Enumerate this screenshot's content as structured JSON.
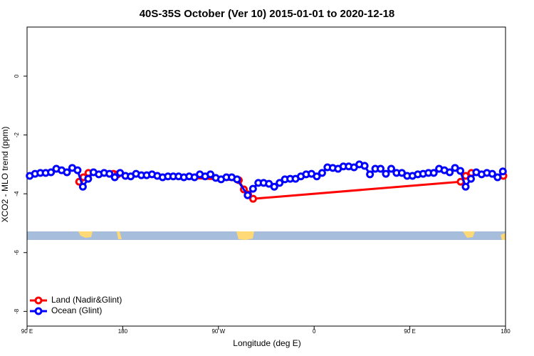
{
  "chart_data": {
    "type": "line",
    "title": "40S-35S October (Ver 10)   2015-01-01 to 2020-12-18",
    "x_label": "Longitude (deg E)",
    "y_label": "XCO2 - MLO trend (ppm)",
    "xlim": [
      90,
      540
    ],
    "ylim": [
      -8.5,
      1.67
    ],
    "xticks": [
      {
        "value": 90,
        "label": "90 E"
      },
      180,
      {
        "value": 270,
        "label": "90 W"
      },
      {
        "value": 360,
        "label": "0"
      },
      {
        "value": 450,
        "label": "90 E"
      },
      {
        "value": 540,
        "label": "180"
      }
    ],
    "yticks": [
      -8,
      -6,
      -4,
      -2,
      0
    ],
    "legend": "bottom-left",
    "series": [
      {
        "name": "Land (Nadir&Glint)",
        "color": "#ff0000",
        "x": [
          139,
          143,
          147.7,
          171.2,
          175.2,
          289.2,
          293.9,
          297.9,
          302.6,
          497.8,
          502.5,
          507.9,
          538
        ],
        "values": [
          -3.59,
          -3.44,
          -3.29,
          -3.32,
          -3.34,
          -3.54,
          -3.85,
          -4.02,
          -4.17,
          -3.59,
          -3.39,
          -3.29,
          -3.39
        ]
      },
      {
        "name": "Ocean (Glint)",
        "color": "#0000ff",
        "x": [
          92.5,
          97.5,
          102.5,
          107.5,
          112.5,
          117.5,
          122.5,
          127.5,
          132.5,
          137.5,
          142.5,
          147.5,
          152.5,
          157.5,
          162.5,
          167.5,
          172.5,
          177.5,
          182.5,
          187.5,
          192.5,
          197.5,
          202.5,
          207.5,
          212.5,
          217.5,
          222.5,
          227.5,
          232.5,
          237.5,
          242.5,
          247.5,
          252.5,
          257.5,
          262.5,
          267.5,
          272.5,
          277.5,
          282.5,
          287.5,
          297.5,
          302.5,
          307.5,
          312.5,
          317.5,
          322.5,
          327.5,
          332.5,
          337.5,
          342.5,
          347.5,
          352.5,
          357.5,
          362.5,
          367.5,
          372.5,
          377.5,
          382.5,
          387.5,
          392.5,
          397.5,
          402.5,
          407.5,
          412.5,
          417.5,
          422.5,
          427.5,
          432.5,
          437.5,
          442.5,
          447.5,
          452.5,
          457.5,
          462.5,
          467.5,
          472.5,
          477.5,
          482.5,
          487.5,
          492.5,
          497.5,
          502.5,
          507.5,
          512.5,
          517.5,
          522.5,
          527.5,
          532.5,
          537.5
        ],
        "values": [
          -3.39,
          -3.32,
          -3.29,
          -3.29,
          -3.27,
          -3.15,
          -3.2,
          -3.27,
          -3.12,
          -3.2,
          -3.76,
          -3.49,
          -3.27,
          -3.34,
          -3.29,
          -3.32,
          -3.44,
          -3.29,
          -3.39,
          -3.41,
          -3.32,
          -3.37,
          -3.37,
          -3.34,
          -3.39,
          -3.44,
          -3.41,
          -3.41,
          -3.41,
          -3.44,
          -3.41,
          -3.44,
          -3.34,
          -3.41,
          -3.34,
          -3.46,
          -3.51,
          -3.44,
          -3.44,
          -3.51,
          -4.05,
          -3.83,
          -3.63,
          -3.63,
          -3.66,
          -3.76,
          -3.63,
          -3.51,
          -3.49,
          -3.49,
          -3.41,
          -3.34,
          -3.32,
          -3.41,
          -3.29,
          -3.1,
          -3.12,
          -3.15,
          -3.07,
          -3.07,
          -3.1,
          -3.0,
          -3.05,
          -3.34,
          -3.15,
          -3.15,
          -3.32,
          -3.15,
          -3.29,
          -3.29,
          -3.39,
          -3.39,
          -3.34,
          -3.32,
          -3.29,
          -3.29,
          -3.15,
          -3.2,
          -3.27,
          -3.12,
          -3.22,
          -3.76,
          -3.49,
          -3.27,
          -3.34,
          -3.29,
          -3.32,
          -3.44,
          -3.24
        ]
      }
    ]
  }
}
